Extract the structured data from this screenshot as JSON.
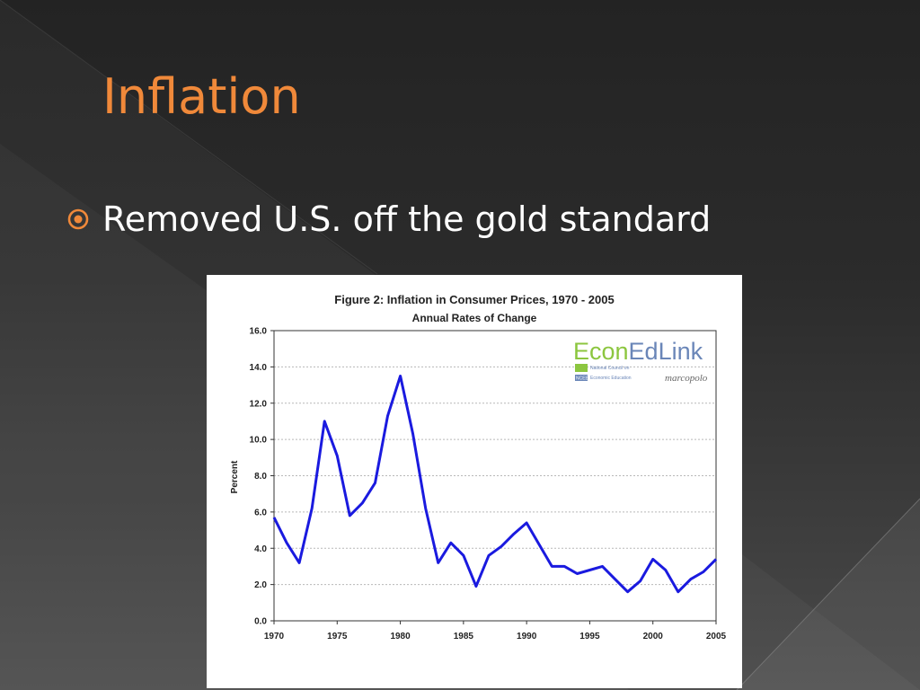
{
  "slide": {
    "title": "Inflation",
    "bullets": [
      "Removed U.S. off the gold standard"
    ],
    "accent_color": "#f0893a",
    "bullet_icon": "circle-target-icon"
  },
  "logo": {
    "econ": "Econ",
    "edlink": "EdLink",
    "org_line1": "National Council on",
    "org_line2": "Economic Education",
    "org_badge": "NCEE",
    "partner": "marcopolo"
  },
  "chart_data": {
    "type": "line",
    "title": "Figure 2: Inflation in Consumer Prices, 1970 - 2005",
    "subtitle": "Annual Rates of Change",
    "xlabel": "",
    "ylabel": "Percent",
    "xlim": [
      1970,
      2005
    ],
    "ylim": [
      0,
      16
    ],
    "x_ticks": [
      "1970",
      "1975",
      "1980",
      "1985",
      "1990",
      "1995",
      "2000",
      "2005"
    ],
    "y_ticks": [
      "0.0",
      "2.0",
      "4.0",
      "6.0",
      "8.0",
      "10.0",
      "12.0",
      "14.0",
      "16.0"
    ],
    "grid": true,
    "line_color": "#1a1adf",
    "x": [
      1970,
      1971,
      1972,
      1973,
      1974,
      1975,
      1976,
      1977,
      1978,
      1979,
      1980,
      1981,
      1982,
      1983,
      1984,
      1985,
      1986,
      1987,
      1988,
      1989,
      1990,
      1991,
      1992,
      1993,
      1994,
      1995,
      1996,
      1997,
      1998,
      1999,
      2000,
      2001,
      2002,
      2003,
      2004,
      2005
    ],
    "values": [
      5.7,
      4.3,
      3.2,
      6.2,
      11.0,
      9.1,
      5.8,
      6.5,
      7.6,
      11.3,
      13.5,
      10.3,
      6.2,
      3.2,
      4.3,
      3.6,
      1.9,
      3.6,
      4.1,
      4.8,
      5.4,
      4.2,
      3.0,
      3.0,
      2.6,
      2.8,
      3.0,
      2.3,
      1.6,
      2.2,
      3.4,
      2.8,
      1.6,
      2.3,
      2.7,
      3.4
    ]
  }
}
